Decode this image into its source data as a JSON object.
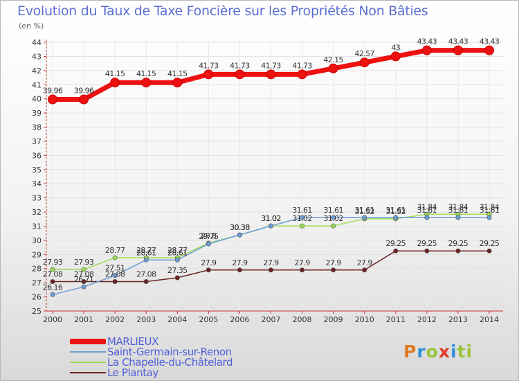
{
  "chart_data": {
    "type": "line",
    "title": "Evolution du Taux de Taxe Foncière sur les Propriétés Non Bâties",
    "ylabel": "(en %)",
    "xlabel": "",
    "ylim": [
      25,
      44
    ],
    "yticks": [
      "25",
      "26",
      "27",
      "28",
      "29",
      "30",
      "31",
      "32",
      "33",
      "34",
      "35",
      "36",
      "37",
      "38",
      "39",
      "40",
      "41",
      "42",
      "43",
      "44"
    ],
    "categories": [
      "2000",
      "2001",
      "2002",
      "2003",
      "2004",
      "2005",
      "2006",
      "2007",
      "2008",
      "2009",
      "2010",
      "2011",
      "2012",
      "2013",
      "2014"
    ],
    "series": [
      {
        "name": "MARLIEUX",
        "color": "#ee1111",
        "values": [
          39.96,
          39.96,
          41.15,
          41.15,
          41.15,
          41.73,
          41.73,
          41.73,
          41.73,
          42.15,
          42.57,
          43,
          43.43,
          43.43,
          43.43
        ],
        "labels": [
          "39.96",
          "39.96",
          "41.15",
          "41.15",
          "41.15",
          "41.73",
          "41.73",
          "41.73",
          "41.73",
          "42.15",
          "42.57",
          "43",
          "43.43",
          "43.43",
          "43.43"
        ]
      },
      {
        "name": "Saint-Germain-sur-Renon",
        "color": "#6b9dd6",
        "values": [
          26.16,
          26.71,
          27.51,
          28.61,
          28.61,
          29.75,
          30.38,
          31.02,
          31.61,
          31.61,
          31.61,
          31.61,
          31.61,
          31.61,
          31.61
        ],
        "labels": [
          "26.16",
          "26.71",
          "27.51",
          "28.61",
          "28.61",
          "29.75",
          "30.38",
          "31.02",
          "31.61",
          "31.61",
          "31.61",
          "31.61",
          "31.61",
          "31.61",
          "31.61"
        ]
      },
      {
        "name": "La Chapelle-du-Châtelard",
        "color": "#99dd55",
        "values": [
          27.93,
          27.93,
          28.77,
          28.77,
          28.77,
          29.8,
          30.38,
          31.02,
          31.02,
          31.02,
          31.52,
          31.52,
          31.84,
          31.84,
          31.84
        ],
        "labels": [
          "27.93",
          "27.93",
          "28.77",
          "28.77",
          "28.77",
          "29.8",
          "30.38",
          "31.02",
          "31.02",
          "31.02",
          "31.52",
          "31.52",
          "31.84",
          "31.84",
          "31.84"
        ]
      },
      {
        "name": "Le Plantay",
        "color": "#6b2222",
        "values": [
          27.08,
          27.08,
          27.08,
          27.08,
          27.35,
          27.9,
          27.9,
          27.9,
          27.9,
          27.9,
          27.9,
          29.25,
          29.25,
          29.25,
          29.25
        ],
        "labels": [
          "27.08",
          "27.08",
          "27.08",
          "27.08",
          "27.35",
          "27.9",
          "27.9",
          "27.9",
          "27.9",
          "27.9",
          "27.9",
          "29.25",
          "29.25",
          "29.25",
          "29.25"
        ]
      }
    ]
  },
  "logo": {
    "text": "Proxiti",
    "letters": [
      "P",
      "r",
      "o",
      "x",
      "i",
      "t",
      "i"
    ]
  }
}
